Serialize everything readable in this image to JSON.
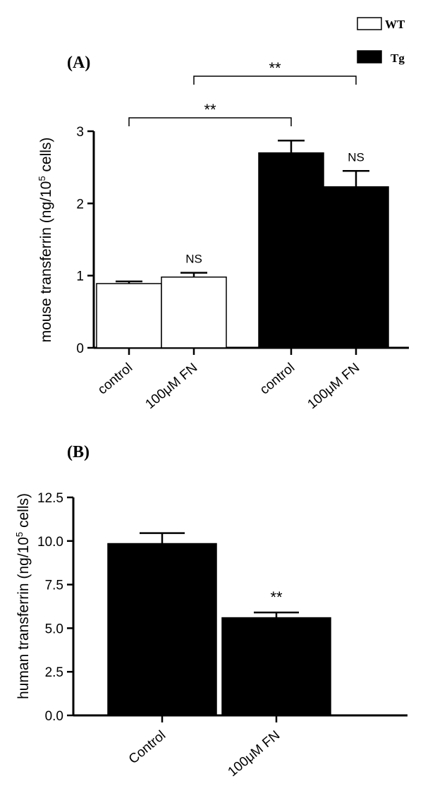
{
  "legend": {
    "items": [
      {
        "label": "WT",
        "fill": "#ffffff",
        "stroke": "#000000"
      },
      {
        "label": "Tg",
        "fill": "#000000",
        "stroke": "#000000"
      }
    ]
  },
  "chart_data": [
    {
      "type": "bar",
      "panel_label": "(A)",
      "ylabel_main": "mouse transferrin (ng/10",
      "ylabel_sup": "5",
      "ylabel_tail": " cells)",
      "ylim": [
        0,
        3
      ],
      "yticks": [
        "0",
        "1",
        "2",
        "3"
      ],
      "categories": [
        "control",
        "100μM FN",
        "control",
        "100μM FN"
      ],
      "groups": [
        "WT",
        "WT",
        "Tg",
        "Tg"
      ],
      "values": [
        0.89,
        0.98,
        2.7,
        2.23
      ],
      "errors": [
        0.03,
        0.06,
        0.17,
        0.22
      ],
      "bar_annotations": [
        "",
        "NS",
        "",
        "NS"
      ],
      "brackets": [
        {
          "from": 0,
          "to": 2,
          "label": "**"
        },
        {
          "from": 1,
          "to": 3,
          "label": "**"
        }
      ],
      "colors": {
        "WT": "#ffffff",
        "Tg": "#000000"
      }
    },
    {
      "type": "bar",
      "panel_label": "(B)",
      "ylabel_main": "human transferrin (ng/10",
      "ylabel_sup": "5",
      "ylabel_tail": " cells)",
      "ylim": [
        0,
        12.5
      ],
      "yticks": [
        "0.0",
        "2.5",
        "5.0",
        "7.5",
        "10.0",
        "12.5"
      ],
      "categories": [
        "Control",
        "100μM FN"
      ],
      "values": [
        9.85,
        5.6
      ],
      "errors": [
        0.6,
        0.3
      ],
      "bar_annotations": [
        "",
        "**"
      ],
      "colors": {
        "bar": "#000000"
      }
    }
  ]
}
